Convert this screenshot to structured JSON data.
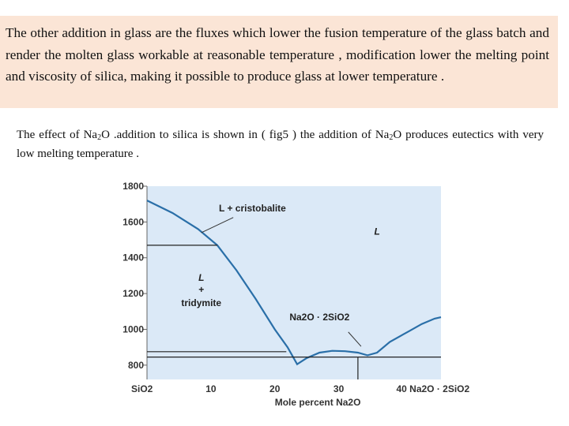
{
  "intro": {
    "text": "The other addition in glass are the fluxes which lower the fusion temperature of the glass batch and render the molten glass workable  at reasonable temperature , modification lower the melting point and viscosity of silica, making it possible to produce glass at lower temperature ."
  },
  "effect": {
    "part1": "The effect of Na",
    "sub1": "2",
    "part2": "O .addition to silica is shown in ( fig5 ) the addition of Na",
    "sub2": "2",
    "part3": "O produces eutectics with very low melting temperature ."
  },
  "chart_data": {
    "type": "line",
    "title": "",
    "xlabel": "Mole percent Na2O",
    "ylabel": "",
    "xlim": [
      0,
      46
    ],
    "ylim": [
      720,
      1800
    ],
    "x_ticks": [
      {
        "value": 0,
        "label": "SiO2"
      },
      {
        "value": 10,
        "label": "10"
      },
      {
        "value": 20,
        "label": "20"
      },
      {
        "value": 30,
        "label": "30"
      },
      {
        "value": 40,
        "label": "40 Na2O · 2SiO2"
      }
    ],
    "y_ticks": [
      800,
      1000,
      1200,
      1400,
      1600,
      1800
    ],
    "grid": false,
    "series": [
      {
        "values": [
          [
            0,
            1720
          ],
          [
            4,
            1650
          ],
          [
            8,
            1560
          ],
          [
            11,
            1470
          ],
          [
            14,
            1330
          ],
          [
            17,
            1170
          ],
          [
            20,
            1000
          ],
          [
            22,
            900
          ],
          [
            23.5,
            805
          ],
          [
            25,
            840
          ],
          [
            27,
            870
          ],
          [
            29,
            880
          ],
          [
            31,
            878
          ],
          [
            33,
            870
          ],
          [
            34.5,
            855
          ],
          [
            36,
            870
          ],
          [
            38,
            930
          ],
          [
            41,
            990
          ],
          [
            43,
            1030
          ],
          [
            45,
            1060
          ],
          [
            46,
            1068
          ]
        ]
      },
      {
        "values": [
          [
            0,
            1470
          ],
          [
            11,
            1470
          ]
        ]
      },
      {
        "values": [
          [
            0,
            875
          ],
          [
            21.8,
            875
          ]
        ]
      },
      {
        "values": [
          [
            0,
            845
          ],
          [
            33,
            845
          ]
        ]
      },
      {
        "values": [
          [
            33,
            845
          ],
          [
            46,
            845
          ]
        ]
      },
      {
        "values": [
          [
            33,
            845
          ],
          [
            33,
            720
          ]
        ]
      }
    ],
    "labels": [
      {
        "text": "L + cristobalite",
        "x": 16.5,
        "y": 1660
      },
      {
        "text": "L",
        "x": 36,
        "y": 1530
      },
      {
        "text": "L",
        "x": 8.5,
        "y": 1270
      },
      {
        "text": "+",
        "x": 8.5,
        "y": 1205
      },
      {
        "text": "tridymite",
        "x": 8.5,
        "y": 1130
      },
      {
        "text": "Na2O · 2SiO2",
        "x": 27,
        "y": 1050
      }
    ]
  }
}
